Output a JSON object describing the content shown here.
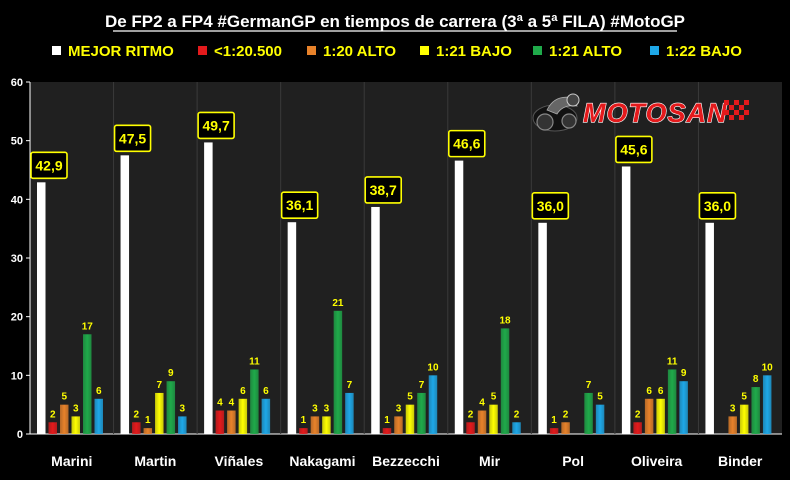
{
  "chart_data": {
    "type": "bar",
    "title": "De FP2 a FP4 #GermanGP en tiempos de carrera (3ª a 5ª FILA) #MotoGP",
    "categories": [
      "Marini",
      "Martin",
      "Viñales",
      "Nakagami",
      "Bezzecchi",
      "Mir",
      "Pol",
      "Oliveira",
      "Binder"
    ],
    "series": [
      {
        "name": "MEJOR RITMO",
        "color": "#ffffff",
        "values": [
          42.9,
          47.5,
          49.7,
          36.1,
          38.7,
          46.6,
          36.0,
          45.6,
          36.0
        ],
        "labels": [
          "42,9",
          "47,5",
          "49,7",
          "36,1",
          "38,7",
          "46,6",
          "36,0",
          "45,6",
          "36,0"
        ]
      },
      {
        "name": "<1:20.500",
        "color": "#e41a1c",
        "values": [
          2,
          2,
          4,
          1,
          1,
          2,
          1,
          2,
          null
        ]
      },
      {
        "name": "1:20 ALTO",
        "color": "#e8822a",
        "values": [
          5,
          1,
          4,
          3,
          3,
          4,
          2,
          6,
          3
        ]
      },
      {
        "name": "1:21 BAJO",
        "color": "#ffff00",
        "values": [
          3,
          7,
          6,
          3,
          5,
          5,
          null,
          6,
          5
        ]
      },
      {
        "name": "1:21 ALTO",
        "color": "#1faa4a",
        "values": [
          17,
          9,
          11,
          21,
          7,
          18,
          7,
          11,
          8
        ]
      },
      {
        "name": "1:22 BAJO",
        "color": "#1ea8e8",
        "values": [
          6,
          3,
          6,
          7,
          10,
          2,
          5,
          9,
          10
        ]
      }
    ],
    "y_ticks": [
      "0",
      "10",
      "20",
      "30",
      "40",
      "50",
      "60"
    ],
    "ylim": [
      0,
      60
    ],
    "grid": false,
    "legend_position": "top"
  },
  "logo": {
    "text": "MOTOSAN",
    "icon": "motorcycle-rider-icon",
    "colors": {
      "fill": "#e41a1c",
      "outline": "#ffffff"
    }
  },
  "colors": {
    "background": "#000000",
    "plot_background": "#202020",
    "text": "#ffffff",
    "label": "#ffff00"
  }
}
